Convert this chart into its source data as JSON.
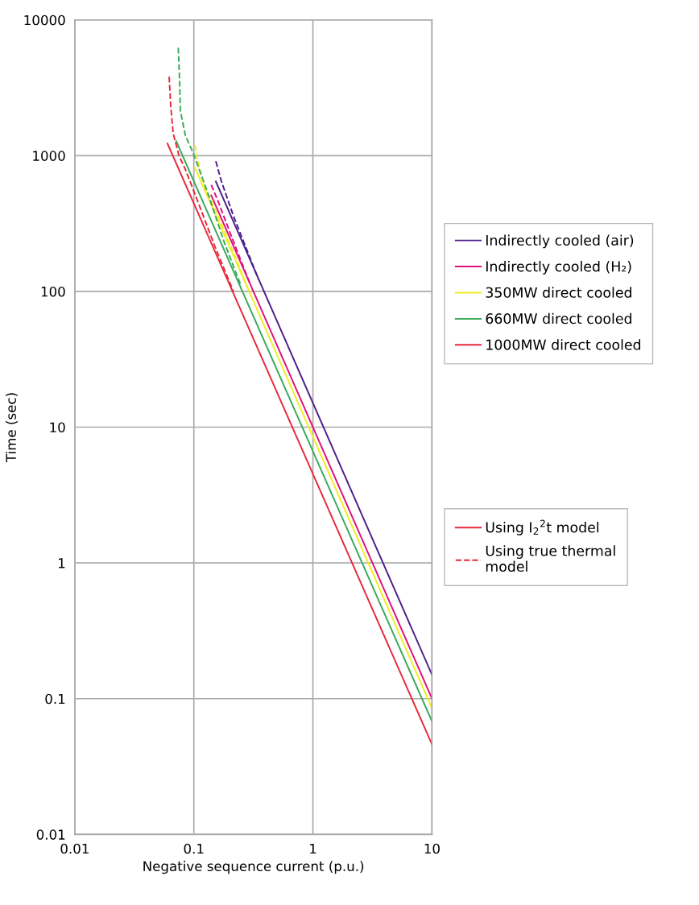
{
  "chart_data": {
    "type": "line",
    "xlabel": "Negative sequence current (p.u.)",
    "ylabel": "Time (sec)",
    "log": "xy",
    "grid": true,
    "legend": "right",
    "line_style": "solid",
    "xlim": [
      0.01,
      10
    ],
    "xticks": [
      0.01,
      0.1,
      1,
      10
    ],
    "ylim": [
      0.01,
      10000
    ],
    "yticks": [
      0.01,
      0.1,
      1,
      10,
      100,
      1000,
      10000
    ],
    "series": [
      {
        "name": "Indirectly cooled (air)",
        "color": "#4b1e8c",
        "x": [
          0.153,
          10
        ],
        "values": [
          645,
          0.15
        ]
      },
      {
        "name": "Indirectly cooled (H₂)",
        "color": "#e0107a",
        "x": [
          0.14,
          10
        ],
        "values": [
          510,
          0.1
        ]
      },
      {
        "name": "350MW direct cooled",
        "color": "#eeee22",
        "x": [
          0.102,
          10
        ],
        "values": [
          817,
          0.085
        ]
      },
      {
        "name": "660MW direct cooled",
        "color": "#3aaa5a",
        "x": [
          0.071,
          10
        ],
        "values": [
          1280,
          0.068
        ]
      },
      {
        "name": "1000MW direct cooled",
        "color": "#e8283c",
        "x": [
          0.06,
          10
        ],
        "values": [
          1230,
          0.046
        ]
      },
      {
        "color": "#4b1e8c",
        "line_style": "dashed",
        "x": [
          0.153,
          0.17,
          0.215,
          0.28,
          0.35
        ],
        "values": [
          910,
          650,
          360,
          200,
          122
        ]
      },
      {
        "color": "#e0107a",
        "line_style": "dashed",
        "x": [
          0.14,
          0.16,
          0.18,
          0.23,
          0.3
        ],
        "values": [
          610,
          460,
          350,
          200,
          111
        ]
      },
      {
        "color": "#eeee22",
        "line_style": "dashed",
        "x": [
          0.102,
          0.11,
          0.125,
          0.16,
          0.22,
          0.3
        ],
        "values": [
          1195,
          850,
          570,
          360,
          185,
          94
        ]
      },
      {
        "color": "#3aaa5a",
        "line_style": "dashed",
        "x": [
          0.074,
          0.076,
          0.077,
          0.085,
          0.099,
          0.13,
          0.18,
          0.25
        ],
        "values": [
          6240,
          3500,
          2150,
          1400,
          1040,
          540,
          230,
          109
        ]
      },
      {
        "color": "#e8283c",
        "line_style": "dashed",
        "x": [
          0.062,
          0.064,
          0.067,
          0.075,
          0.085,
          0.11,
          0.15,
          0.215
        ],
        "values": [
          3820,
          2300,
          1460,
          1000,
          790,
          440,
          215,
          100
        ]
      }
    ],
    "annotations": [
      "Using I$_{2}$$^{2}$t model",
      "Using true thermal\nmodel"
    ]
  }
}
